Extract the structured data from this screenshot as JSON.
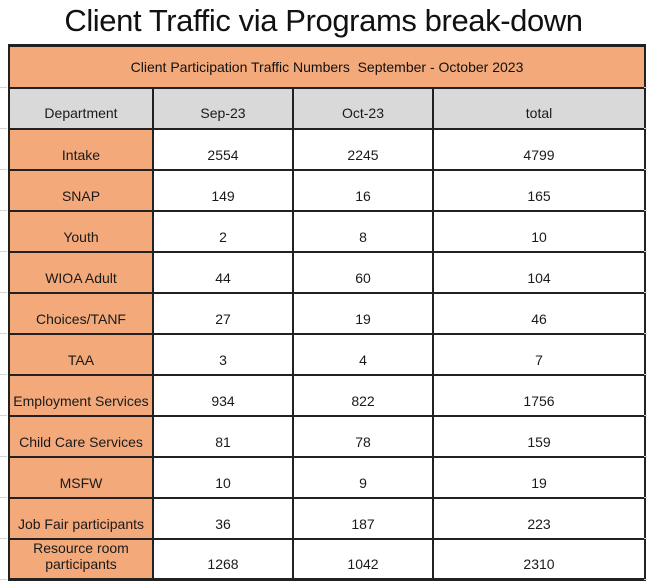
{
  "page": {
    "title": "Client Traffic via Programs break-down"
  },
  "table": {
    "banner": "Client Participation Traffic Numbers  September - October 2023",
    "columns": [
      "Department",
      "Sep-23",
      "Oct-23",
      "total"
    ],
    "rows": [
      [
        "Intake",
        "2554",
        "2245",
        "4799"
      ],
      [
        "SNAP",
        "149",
        "16",
        "165"
      ],
      [
        "Youth",
        "2",
        "8",
        "10"
      ],
      [
        "WIOA Adult",
        "44",
        "60",
        "104"
      ],
      [
        "Choices/TANF",
        "27",
        "19",
        "46"
      ],
      [
        "TAA",
        "3",
        "4",
        "7"
      ],
      [
        "Employment Services",
        "934",
        "822",
        "1756"
      ],
      [
        "Child Care Services",
        "81",
        "78",
        "159"
      ],
      [
        "MSFW",
        "10",
        "9",
        "19"
      ],
      [
        "Job Fair participants",
        "36",
        "187",
        "223"
      ],
      [
        "Resource room participants",
        "1268",
        "1042",
        "2310"
      ]
    ],
    "colors": {
      "banner_bg": "#F3A97A",
      "department_bg": "#F3A97A",
      "header_bg": "#D9D9D9",
      "border": "#212121"
    }
  }
}
